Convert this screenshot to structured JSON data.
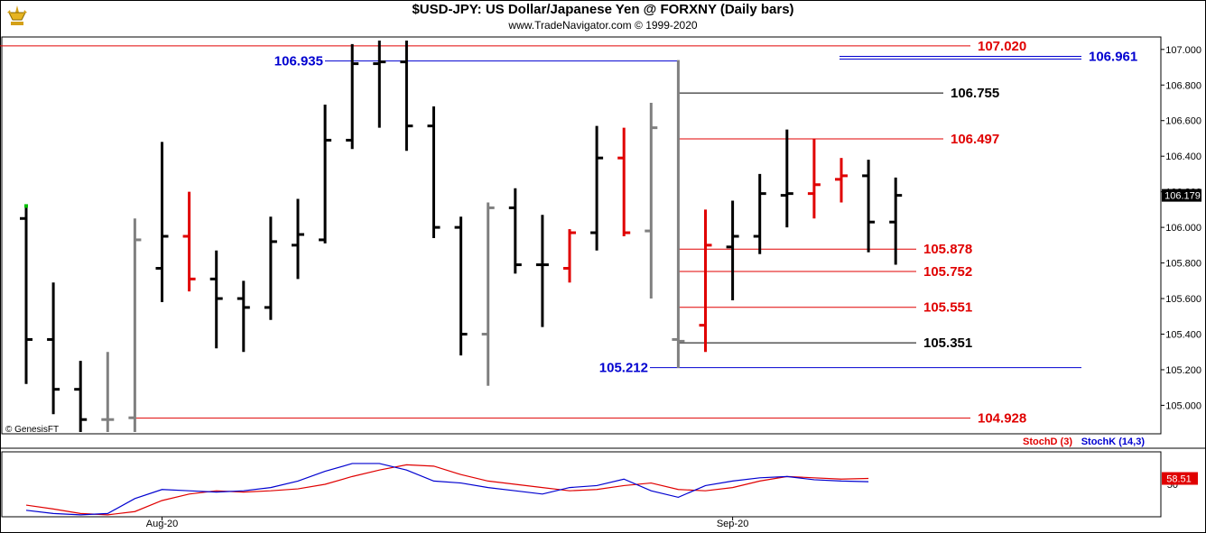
{
  "header": {
    "title": "$USD-JPY:  US Dollar/Japanese Yen @ FORXNY  (Daily bars)",
    "subtitle": "www.TradeNavigator.com © 1999-2020"
  },
  "chart_data": [
    {
      "type": "ohlc",
      "ylim": [
        104.84,
        107.07
      ],
      "yticks": [
        "107.000",
        "106.800",
        "106.600",
        "106.400",
        "106.200",
        "106.000",
        "105.800",
        "105.600",
        "105.400",
        "105.200",
        "105.000"
      ],
      "last_price_label": "106.179",
      "watermark": "© GenesisFT",
      "bars": [
        {
          "o": 106.05,
          "h": 106.11,
          "l": 105.12,
          "c": 105.37,
          "color": "black"
        },
        {
          "o": 105.37,
          "h": 105.69,
          "l": 104.95,
          "c": 105.09,
          "color": "black"
        },
        {
          "o": 105.09,
          "h": 105.25,
          "l": 104.85,
          "c": 104.92,
          "color": "black"
        },
        {
          "o": 104.92,
          "h": 105.3,
          "l": 104.85,
          "c": 104.92,
          "color": "gray"
        },
        {
          "o": 104.93,
          "h": 106.05,
          "l": 104.85,
          "c": 105.93,
          "color": "gray"
        },
        {
          "o": 105.77,
          "h": 106.48,
          "l": 105.58,
          "c": 105.95,
          "color": "black"
        },
        {
          "o": 105.95,
          "h": 106.2,
          "l": 105.64,
          "c": 105.71,
          "color": "red"
        },
        {
          "o": 105.71,
          "h": 105.87,
          "l": 105.32,
          "c": 105.6,
          "color": "black"
        },
        {
          "o": 105.6,
          "h": 105.7,
          "l": 105.3,
          "c": 105.55,
          "color": "black"
        },
        {
          "o": 105.55,
          "h": 106.06,
          "l": 105.48,
          "c": 105.92,
          "color": "black"
        },
        {
          "o": 105.9,
          "h": 106.16,
          "l": 105.71,
          "c": 105.96,
          "color": "black"
        },
        {
          "o": 105.93,
          "h": 106.69,
          "l": 105.91,
          "c": 106.49,
          "color": "black"
        },
        {
          "o": 106.49,
          "h": 107.03,
          "l": 106.44,
          "c": 106.92,
          "color": "black"
        },
        {
          "o": 106.92,
          "h": 107.05,
          "l": 106.56,
          "c": 106.93,
          "color": "black"
        },
        {
          "o": 106.93,
          "h": 107.05,
          "l": 106.43,
          "c": 106.57,
          "color": "black"
        },
        {
          "o": 106.57,
          "h": 106.68,
          "l": 105.94,
          "c": 106.0,
          "color": "black"
        },
        {
          "o": 106.0,
          "h": 106.06,
          "l": 105.28,
          "c": 105.4,
          "color": "black"
        },
        {
          "o": 105.4,
          "h": 106.14,
          "l": 105.11,
          "c": 106.11,
          "color": "gray"
        },
        {
          "o": 106.11,
          "h": 106.22,
          "l": 105.74,
          "c": 105.79,
          "color": "black"
        },
        {
          "o": 105.79,
          "h": 106.07,
          "l": 105.44,
          "c": 105.79,
          "color": "black"
        },
        {
          "o": 105.77,
          "h": 105.99,
          "l": 105.69,
          "c": 105.97,
          "color": "red"
        },
        {
          "o": 105.97,
          "h": 106.57,
          "l": 105.87,
          "c": 106.39,
          "color": "black"
        },
        {
          "o": 106.39,
          "h": 106.56,
          "l": 105.95,
          "c": 105.97,
          "color": "red"
        },
        {
          "o": 105.98,
          "h": 106.7,
          "l": 105.6,
          "c": 106.56,
          "color": "gray"
        },
        {
          "o": 105.37,
          "h": 106.94,
          "l": 105.21,
          "c": 105.36,
          "color": "gray"
        },
        {
          "o": 105.45,
          "h": 106.1,
          "l": 105.3,
          "c": 105.9,
          "color": "red"
        },
        {
          "o": 105.89,
          "h": 106.15,
          "l": 105.59,
          "c": 105.95,
          "color": "black"
        },
        {
          "o": 105.95,
          "h": 106.3,
          "l": 105.85,
          "c": 106.19,
          "color": "black"
        },
        {
          "o": 106.18,
          "h": 106.55,
          "l": 106.0,
          "c": 106.19,
          "color": "black"
        },
        {
          "o": 106.19,
          "h": 106.5,
          "l": 106.05,
          "c": 106.24,
          "color": "red"
        },
        {
          "o": 106.27,
          "h": 106.39,
          "l": 106.14,
          "c": 106.29,
          "color": "red"
        },
        {
          "o": 106.29,
          "h": 106.38,
          "l": 105.86,
          "c": 106.03,
          "color": "black"
        },
        {
          "o": 106.03,
          "h": 106.28,
          "l": 105.79,
          "c": 106.18,
          "color": "black"
        }
      ],
      "levels": [
        {
          "value": 107.02,
          "label": "107.020",
          "color": "#e00000"
        },
        {
          "value": 106.961,
          "label": "106.961",
          "color": "#0000d0"
        },
        {
          "value": 106.935,
          "label": "106.935",
          "color": "#0000d0"
        },
        {
          "value": 106.755,
          "label": "106.755",
          "color": "#000000"
        },
        {
          "value": 106.497,
          "label": "106.497",
          "color": "#e00000"
        },
        {
          "value": 105.878,
          "label": "105.878",
          "color": "#e00000"
        },
        {
          "value": 105.752,
          "label": "105.752",
          "color": "#e00000"
        },
        {
          "value": 105.551,
          "label": "105.551",
          "color": "#e00000"
        },
        {
          "value": 105.351,
          "label": "105.351",
          "color": "#000000"
        },
        {
          "value": 105.212,
          "label": "105.212",
          "color": "#0000d0"
        },
        {
          "value": 104.928,
          "label": "104.928",
          "color": "#e00000"
        }
      ],
      "xlabels": [
        {
          "label": "Aug-20",
          "bar": 5
        },
        {
          "label": "Sep-20",
          "bar": 26
        }
      ]
    },
    {
      "type": "line",
      "ylim": [
        0,
        100
      ],
      "ytick_label": "50",
      "last_value_label": "58.51",
      "series": [
        {
          "name": "StochD (3)",
          "color": "#e00000",
          "values": [
            18,
            12,
            5,
            3,
            8,
            25,
            35,
            40,
            38,
            40,
            43,
            50,
            62,
            72,
            80,
            78,
            65,
            55,
            50,
            45,
            40,
            42,
            48,
            52,
            42,
            40,
            45,
            55,
            62,
            60,
            58,
            59
          ]
        },
        {
          "name": "StochK (14,3)",
          "color": "#0000d0",
          "values": [
            10,
            5,
            3,
            5,
            28,
            42,
            40,
            38,
            40,
            45,
            55,
            70,
            82,
            82,
            72,
            55,
            52,
            45,
            40,
            35,
            45,
            48,
            58,
            40,
            30,
            48,
            55,
            60,
            62,
            57,
            55,
            54
          ]
        }
      ],
      "xlabels": [
        "Aug-20",
        "Sep-20"
      ]
    }
  ]
}
